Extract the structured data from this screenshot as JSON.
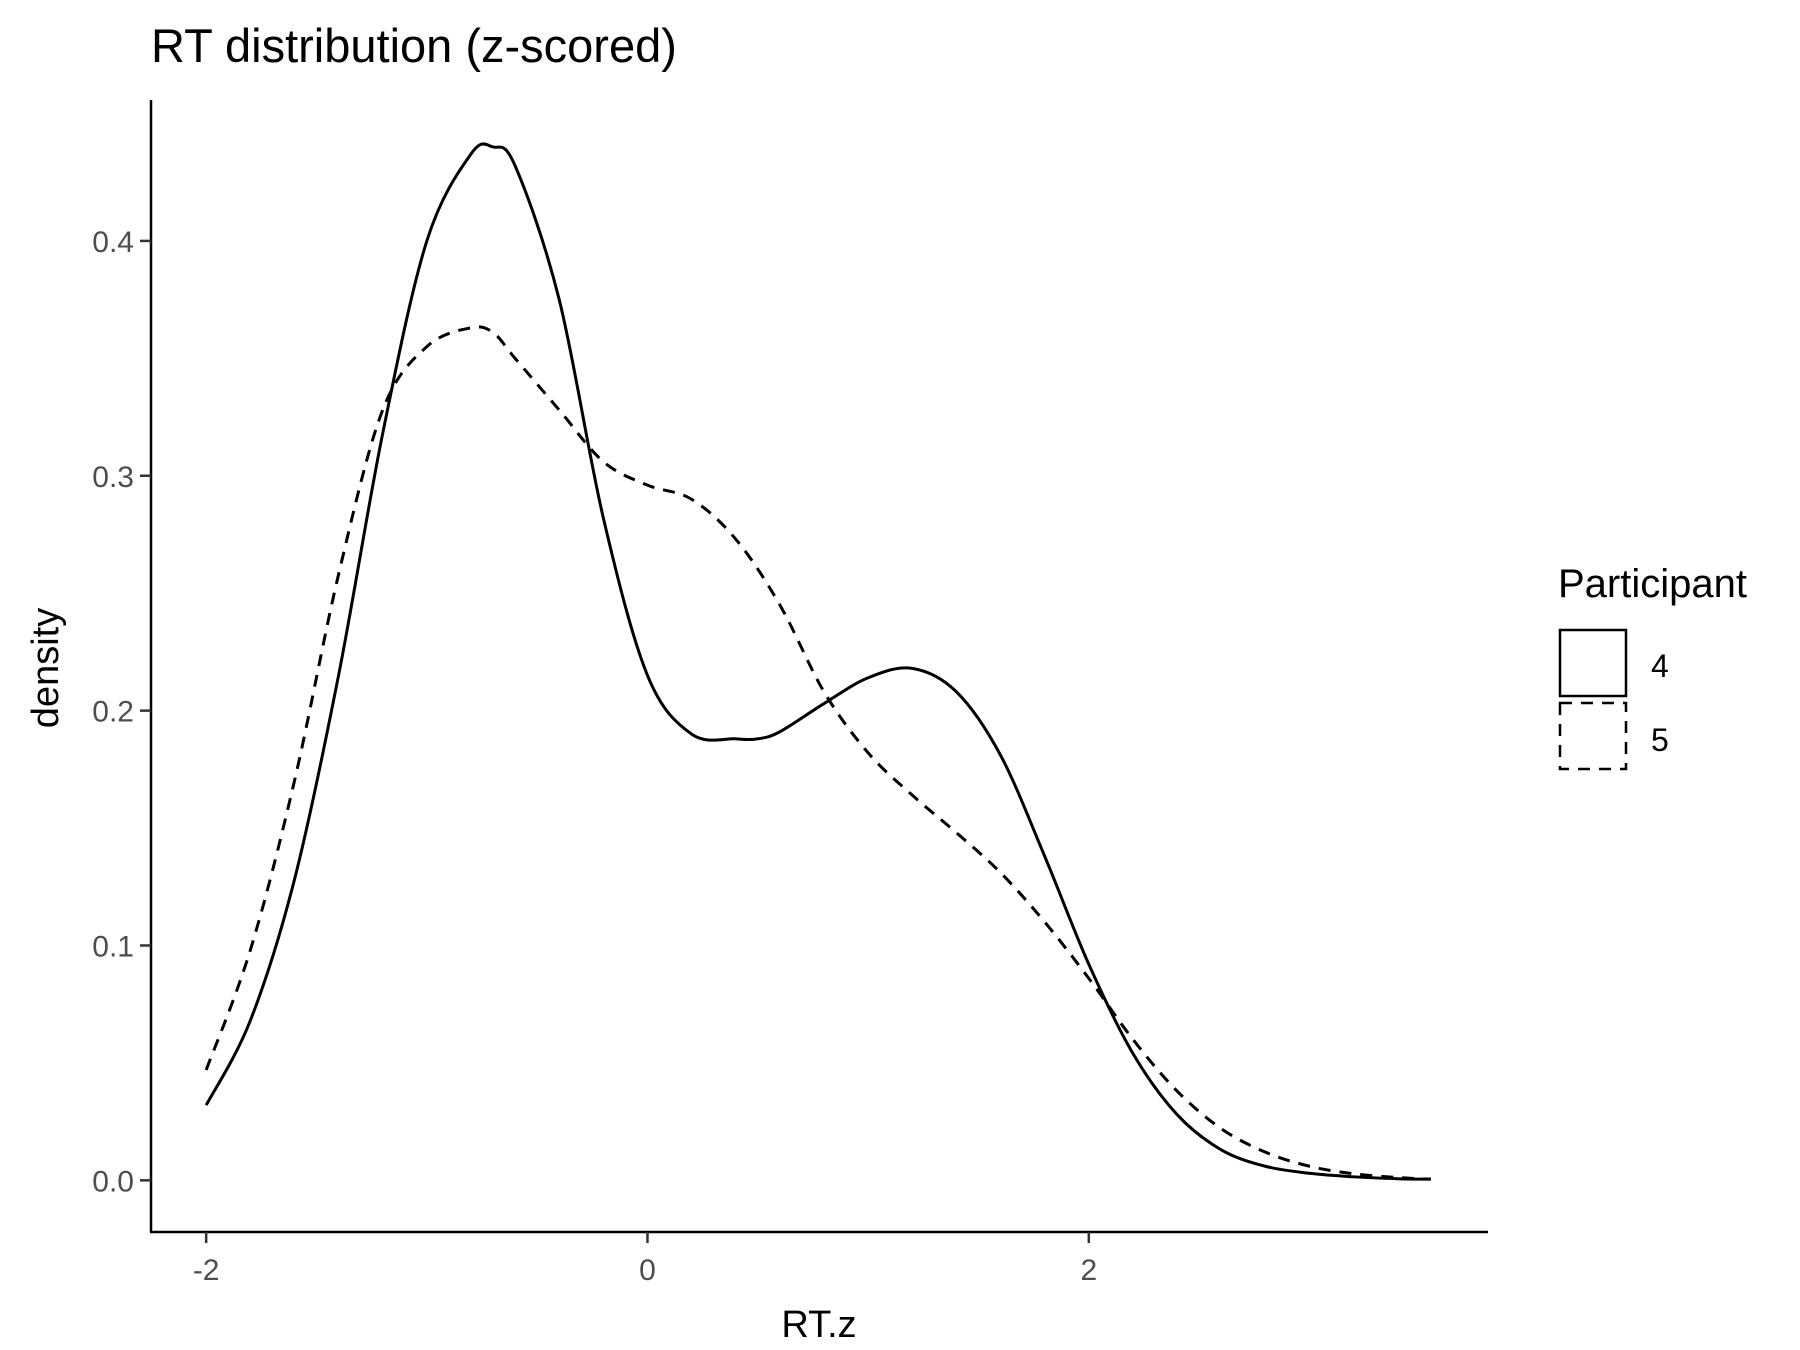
{
  "chart_data": {
    "type": "line",
    "title": "RT distribution (z-scored)",
    "xlabel": "RT.z",
    "ylabel": "density",
    "xlim": [
      -2.25,
      3.8
    ],
    "ylim": [
      -0.022,
      0.46
    ],
    "x_ticks": [
      -2,
      0,
      2
    ],
    "x_tick_labels": [
      "-2",
      "0",
      "2"
    ],
    "y_ticks": [
      0.0,
      0.1,
      0.2,
      0.3,
      0.4
    ],
    "y_tick_labels": [
      "0.0",
      "0.1",
      "0.2",
      "0.3",
      "0.4"
    ],
    "grid": false,
    "legend": {
      "title": "Participant",
      "position": "right",
      "entries": [
        {
          "label": "4",
          "linetype": "solid"
        },
        {
          "label": "5",
          "linetype": "dashed"
        }
      ]
    },
    "series": [
      {
        "name": "4",
        "linetype": "solid",
        "color": "#000000",
        "x": [
          -2.0,
          -1.8,
          -1.6,
          -1.4,
          -1.2,
          -1.0,
          -0.8,
          -0.7,
          -0.6,
          -0.4,
          -0.2,
          0.0,
          0.2,
          0.4,
          0.5,
          0.6,
          0.8,
          1.0,
          1.2,
          1.4,
          1.6,
          1.8,
          2.0,
          2.2,
          2.4,
          2.6,
          2.8,
          3.0,
          3.2,
          3.4,
          3.55
        ],
        "y": [
          0.032,
          0.068,
          0.128,
          0.215,
          0.318,
          0.4,
          0.437,
          0.44,
          0.432,
          0.375,
          0.282,
          0.215,
          0.19,
          0.188,
          0.188,
          0.191,
          0.203,
          0.214,
          0.218,
          0.208,
          0.181,
          0.138,
          0.092,
          0.054,
          0.028,
          0.013,
          0.006,
          0.003,
          0.0015,
          0.0007,
          0.0005
        ]
      },
      {
        "name": "5",
        "linetype": "dashed",
        "color": "#000000",
        "x": [
          -2.0,
          -1.8,
          -1.6,
          -1.4,
          -1.2,
          -1.0,
          -0.8,
          -0.7,
          -0.6,
          -0.4,
          -0.2,
          0.0,
          0.2,
          0.4,
          0.6,
          0.8,
          1.0,
          1.2,
          1.4,
          1.6,
          1.8,
          2.0,
          2.2,
          2.4,
          2.6,
          2.8,
          3.0,
          3.2,
          3.4,
          3.55
        ],
        "y": [
          0.047,
          0.098,
          0.17,
          0.258,
          0.328,
          0.355,
          0.363,
          0.361,
          0.35,
          0.328,
          0.306,
          0.296,
          0.29,
          0.273,
          0.245,
          0.208,
          0.182,
          0.164,
          0.148,
          0.131,
          0.11,
          0.086,
          0.06,
          0.038,
          0.022,
          0.012,
          0.006,
          0.0028,
          0.0012,
          0.0005
        ]
      }
    ]
  }
}
